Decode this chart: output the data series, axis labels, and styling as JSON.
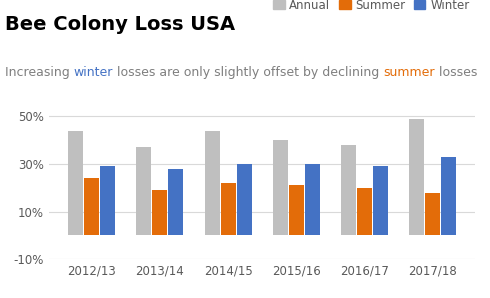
{
  "title": "Bee Colony Loss USA",
  "subtitle_parts": [
    {
      "text": "Increasing ",
      "color": "#7F7F7F"
    },
    {
      "text": "winter",
      "color": "#4472C4"
    },
    {
      "text": " losses are only slightly offset by declining ",
      "color": "#7F7F7F"
    },
    {
      "text": "summer",
      "color": "#E36C09"
    },
    {
      "text": " losses",
      "color": "#7F7F7F"
    }
  ],
  "categories": [
    "2012/13",
    "2013/14",
    "2014/15",
    "2015/16",
    "2016/17",
    "2017/18"
  ],
  "annual": [
    0.44,
    0.37,
    0.44,
    0.4,
    0.38,
    0.49
  ],
  "summer": [
    0.24,
    0.19,
    0.22,
    0.21,
    0.2,
    0.18
  ],
  "winter": [
    0.29,
    0.28,
    0.3,
    0.3,
    0.29,
    0.33
  ],
  "annual_color": "#BFBFBF",
  "summer_color": "#E36C09",
  "winter_color": "#4472C4",
  "ylim": [
    -0.1,
    0.55
  ],
  "yticks": [
    -0.1,
    0.1,
    0.3,
    0.5
  ],
  "ytick_labels": [
    "-10%",
    "10%",
    "30%",
    "50%"
  ],
  "legend_labels": [
    "Annual",
    "Summer",
    "Winter"
  ],
  "legend_colors": [
    "#BFBFBF",
    "#E36C09",
    "#4472C4"
  ],
  "background_color": "white",
  "title_fontsize": 14,
  "subtitle_fontsize": 9,
  "tick_fontsize": 8.5,
  "legend_fontsize": 8.5,
  "bar_width": 0.22,
  "bar_gap": 0.015
}
